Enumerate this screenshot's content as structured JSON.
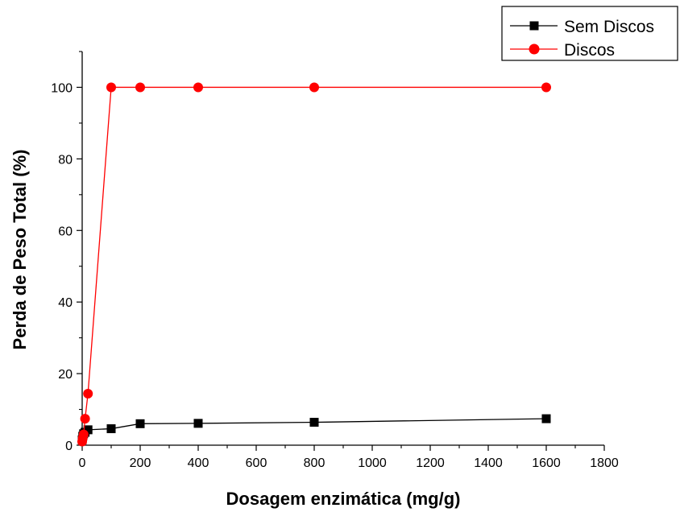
{
  "chart_data": {
    "type": "line",
    "xlabel": "Dosagem enzimática (mg/g)",
    "ylabel": "Perda de Peso Total (%)",
    "xlim": [
      0,
      1800
    ],
    "ylim": [
      0,
      110
    ],
    "x_ticks": [
      0,
      200,
      400,
      600,
      800,
      1000,
      1200,
      1400,
      1600,
      1800
    ],
    "y_ticks": [
      0,
      20,
      40,
      60,
      80,
      100
    ],
    "grid": false,
    "legend_position": "top-right",
    "series": [
      {
        "name": "Sem Discos",
        "color": "#000000",
        "marker": "square",
        "x": [
          0,
          2,
          5,
          10,
          20,
          100,
          200,
          400,
          800,
          1600
        ],
        "y": [
          1.5,
          2.5,
          3.2,
          3.6,
          4.3,
          4.6,
          6.0,
          6.1,
          6.4,
          7.4
        ]
      },
      {
        "name": "Discos",
        "color": "#ff0000",
        "marker": "circle",
        "x": [
          0,
          2,
          5,
          10,
          20,
          100,
          200,
          400,
          800,
          1600
        ],
        "y": [
          1.0,
          2.0,
          3.0,
          7.4,
          14.4,
          100,
          100,
          100,
          100,
          100
        ]
      }
    ]
  }
}
